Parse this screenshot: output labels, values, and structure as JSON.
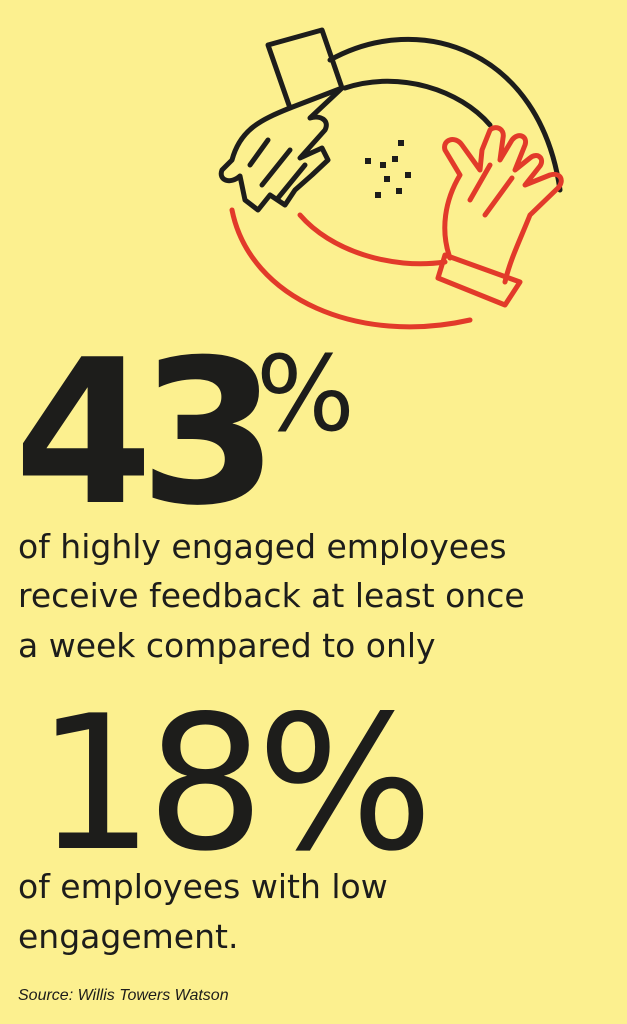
{
  "stat1": {
    "number": "43",
    "symbol": "%"
  },
  "text1": [
    "of highly engaged employees",
    "receive feedback at least once",
    "a week compared to only"
  ],
  "stat2": "18%",
  "text2": [
    "of employees with low",
    "engagement."
  ],
  "source": "Source: Willis Towers Watson"
}
